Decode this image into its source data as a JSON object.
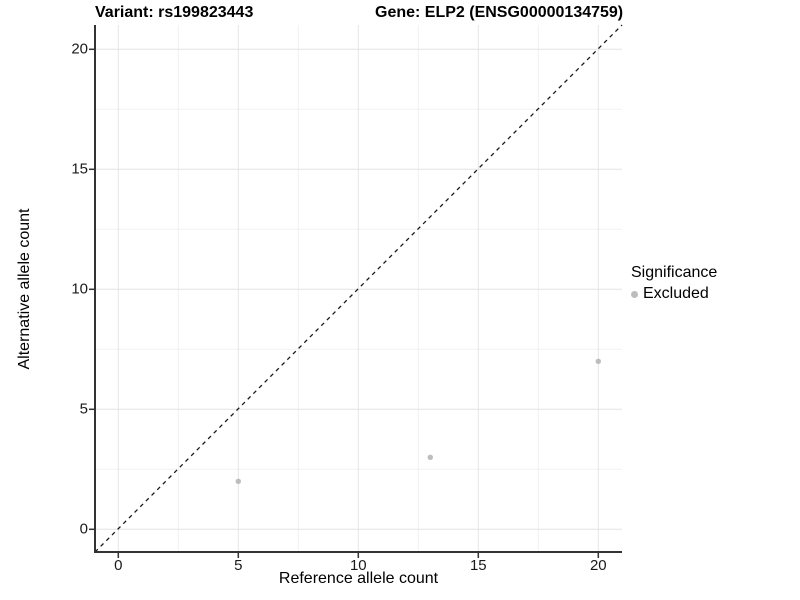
{
  "titles": {
    "variant": "Variant: rs199823443",
    "gene": "Gene: ELP2 (ENSG00000134759)"
  },
  "chart_data": {
    "type": "scatter",
    "title": "Variant: rs199823443   Gene: ELP2 (ENSG00000134759)",
    "xlabel": "Reference allele count",
    "ylabel": "Alternative allele count",
    "xlim": [
      -1,
      21
    ],
    "ylim": [
      -1,
      21
    ],
    "x_ticks": [
      0,
      5,
      10,
      15,
      20
    ],
    "y_ticks": [
      0,
      5,
      10,
      15,
      20
    ],
    "grid": "major and minor gridlines, white background",
    "series": [
      {
        "name": "Excluded",
        "marker": "circle",
        "color": "#bdbdbd",
        "points": [
          {
            "x": 5,
            "y": 2
          },
          {
            "x": 13,
            "y": 3
          },
          {
            "x": 20,
            "y": 7
          }
        ]
      }
    ],
    "reference_line": {
      "type": "identity",
      "equation": "y = x",
      "style": "dashed",
      "color": "#1a1a1a"
    },
    "legend": {
      "title": "Significance",
      "position": "right",
      "entries": [
        {
          "label": "Excluded",
          "marker": "circle",
          "color": "#bdbdbd"
        }
      ]
    }
  },
  "colors": {
    "background": "#ffffff",
    "point": "#bdbdbd",
    "grid_major": "#e4e4e4",
    "grid_minor": "#f2f2f2",
    "axis_line": "#333333",
    "tick_mark": "#333333",
    "reference_line": "#1a1a1a",
    "text": "#000000"
  }
}
